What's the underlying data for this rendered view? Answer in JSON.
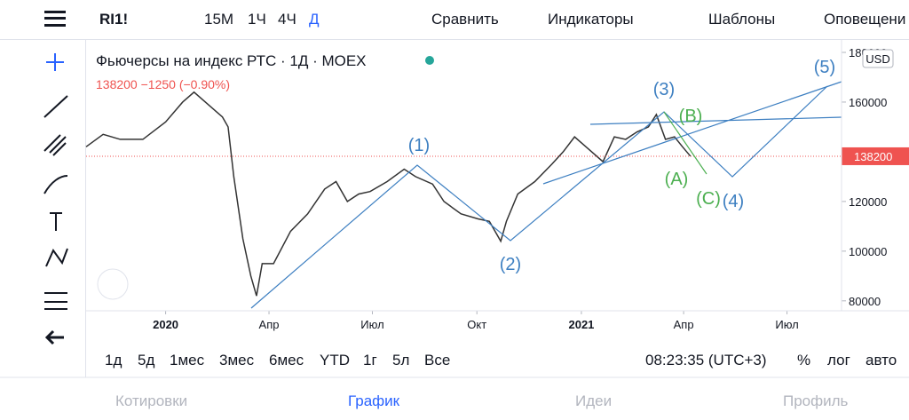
{
  "toolbar": {
    "symbol": "RI1!",
    "intervals": [
      "15M",
      "1Ч",
      "4Ч",
      "Д"
    ],
    "compare": "Сравнить",
    "indicators": "Индикаторы",
    "templates": "Шаблоны",
    "alerts": "Оповещени"
  },
  "chart_data": {
    "type": "line",
    "title": "Фьючерсы на индекс РТС · 1Д · MOEX",
    "quote": "138200 −1250 (−0.90%)",
    "currency": "USD",
    "x": [
      -70,
      -55,
      -40,
      -20,
      0,
      15,
      25,
      40,
      50,
      55,
      60,
      68,
      75,
      80,
      85,
      95,
      110,
      125,
      140,
      150,
      160,
      170,
      180,
      195,
      210,
      220,
      235,
      245,
      260,
      275,
      285,
      295,
      300,
      310,
      325,
      340,
      350,
      360,
      370,
      385,
      395,
      405,
      415,
      425,
      432,
      440,
      448,
      455,
      462
    ],
    "values": [
      142000,
      147000,
      145000,
      145000,
      152000,
      160000,
      164000,
      158000,
      154000,
      150000,
      130000,
      105000,
      90000,
      82000,
      95000,
      95000,
      108000,
      115000,
      125000,
      128000,
      120000,
      123000,
      124000,
      128000,
      133000,
      130000,
      127000,
      120000,
      115000,
      113000,
      112000,
      104000,
      112000,
      123000,
      128000,
      135000,
      140000,
      146000,
      142000,
      136000,
      146000,
      145000,
      148000,
      150000,
      155000,
      145000,
      146000,
      142000,
      138200
    ],
    "last": 138200,
    "color": "#333333",
    "xlim": [
      -70,
      595
    ],
    "ylim": [
      76000,
      185000
    ],
    "yticks": [
      80000,
      100000,
      120000,
      140000,
      160000,
      180000
    ],
    "xticks": [
      {
        "value": 0,
        "label": "2020"
      },
      {
        "value": 91,
        "label": "Апр"
      },
      {
        "value": 182,
        "label": "Июл"
      },
      {
        "value": 274,
        "label": "Окт"
      },
      {
        "value": 366,
        "label": "2021"
      },
      {
        "value": 456,
        "label": "Апр"
      },
      {
        "value": 547,
        "label": "Июл"
      }
    ],
    "annotations": [
      "(1)",
      "(2)",
      "(3)",
      "(4)",
      "(5)",
      "(A)",
      "(B)",
      "(C)"
    ]
  },
  "bottom_bar": {
    "ranges": [
      "1д",
      "5д",
      "1мес",
      "3мес",
      "6мес",
      "YTD",
      "1г",
      "5л",
      "Все"
    ],
    "time": "08:23:35 (UTC+3)",
    "options": [
      "%",
      "лог",
      "авто"
    ]
  },
  "tabs": [
    "Котировки",
    "График",
    "Идеи",
    "Профиль"
  ]
}
